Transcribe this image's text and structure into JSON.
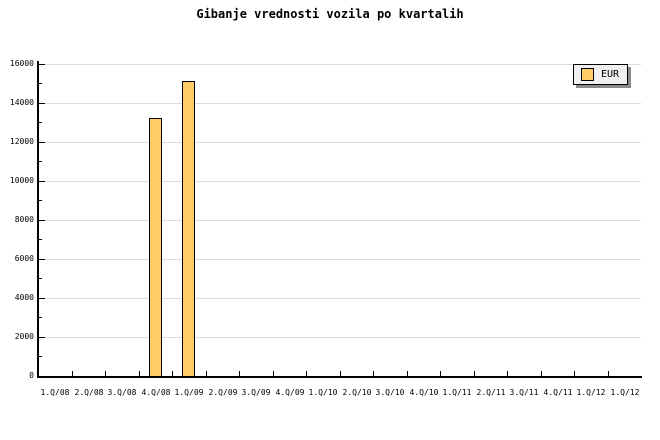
{
  "title": "Gibanje vrednosti vozila po kvartalih",
  "legend": {
    "label": "EUR",
    "position": "top-right"
  },
  "colors": {
    "background": "#FFFFFF",
    "bar_fill": "#FFCC66",
    "bar_border": "#000000",
    "grid": "#DCDCDC",
    "axis": "#000000",
    "legend_bg": "#F0F0F0",
    "legend_border": "#000000",
    "legend_shadow": "#8A8A8A",
    "text": "#000000"
  },
  "chart_data": {
    "type": "bar",
    "title": "Gibanje vrednosti vozila po kvartalih",
    "xlabel": "",
    "ylabel": "",
    "categories": [
      "1.Q/08",
      "2.Q/08",
      "3.Q/08",
      "4.Q/08",
      "1.Q/09",
      "2.Q/09",
      "3.Q/09",
      "4.Q/09",
      "1.Q/10",
      "2.Q/10",
      "3.Q/10",
      "4.Q/10",
      "1.Q/11",
      "2.Q/11",
      "3.Q/11",
      "4.Q/11",
      "1.Q/12",
      "1.Q/12"
    ],
    "series": [
      {
        "name": "EUR",
        "values": [
          null,
          null,
          null,
          13200,
          15100,
          null,
          null,
          null,
          null,
          null,
          null,
          null,
          null,
          null,
          null,
          null,
          null,
          null
        ]
      }
    ],
    "ylim": [
      0,
      16000
    ],
    "ytick_step": 2000,
    "yminor_step": 1000,
    "ytick_labels": [
      "0",
      "2000",
      "4000",
      "6000",
      "8000",
      "10000",
      "12000",
      "14000",
      "16000"
    ],
    "grid": "horizontal-only",
    "legend_position": "top-right",
    "legend_entries": [
      "EUR"
    ]
  }
}
